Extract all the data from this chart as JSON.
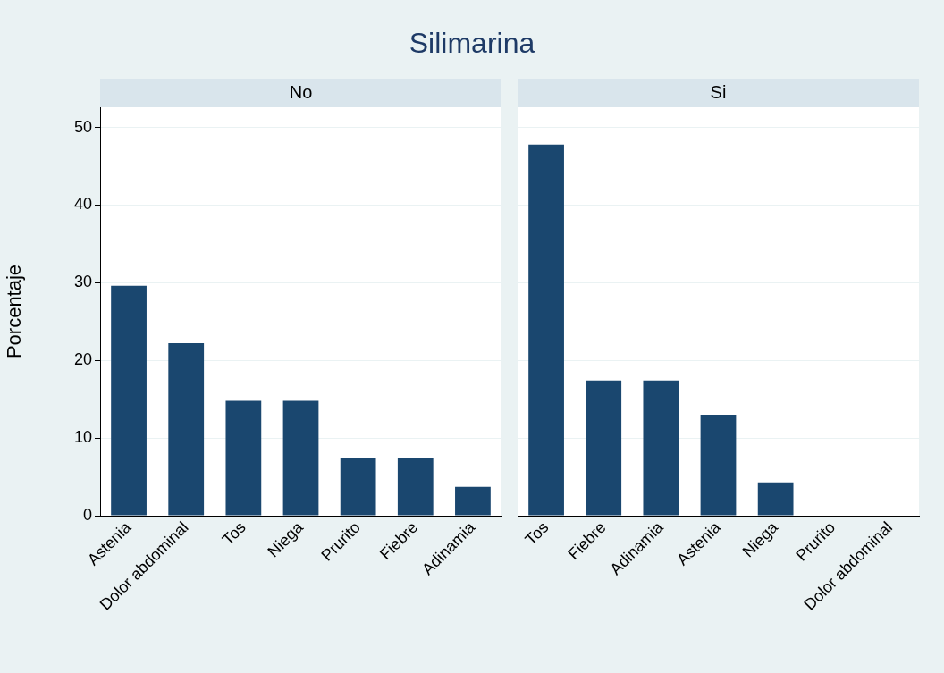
{
  "chart_data": [
    {
      "type": "bar",
      "title": "Silimarina",
      "subtitle": "No",
      "ylabel": "Porcentaje",
      "categories": [
        "Astenia",
        "Dolor abdominal",
        "Tos",
        "Niega",
        "Prurito",
        "Fiebre",
        "Adinamia"
      ],
      "values": [
        29.6,
        22.2,
        14.8,
        14.8,
        7.4,
        7.4,
        3.7
      ],
      "color": "#1a476f",
      "ylim": [
        0,
        52.6
      ],
      "yticks": [
        0,
        10,
        20,
        30,
        40,
        50
      ],
      "grid": "y"
    },
    {
      "type": "bar",
      "subtitle": "Si",
      "categories": [
        "Tos",
        "Fiebre",
        "Adinamia",
        "Astenia",
        "Niega",
        "Prurito",
        "Dolor abdominal"
      ],
      "values": [
        47.8,
        17.4,
        17.4,
        13.0,
        4.3,
        0,
        0
      ],
      "color": "#1a476f",
      "ylim": [
        0,
        52.6
      ],
      "yticks": [
        0,
        10,
        20,
        30,
        40,
        50
      ],
      "grid": "y",
      "tick_labels": "x"
    }
  ]
}
